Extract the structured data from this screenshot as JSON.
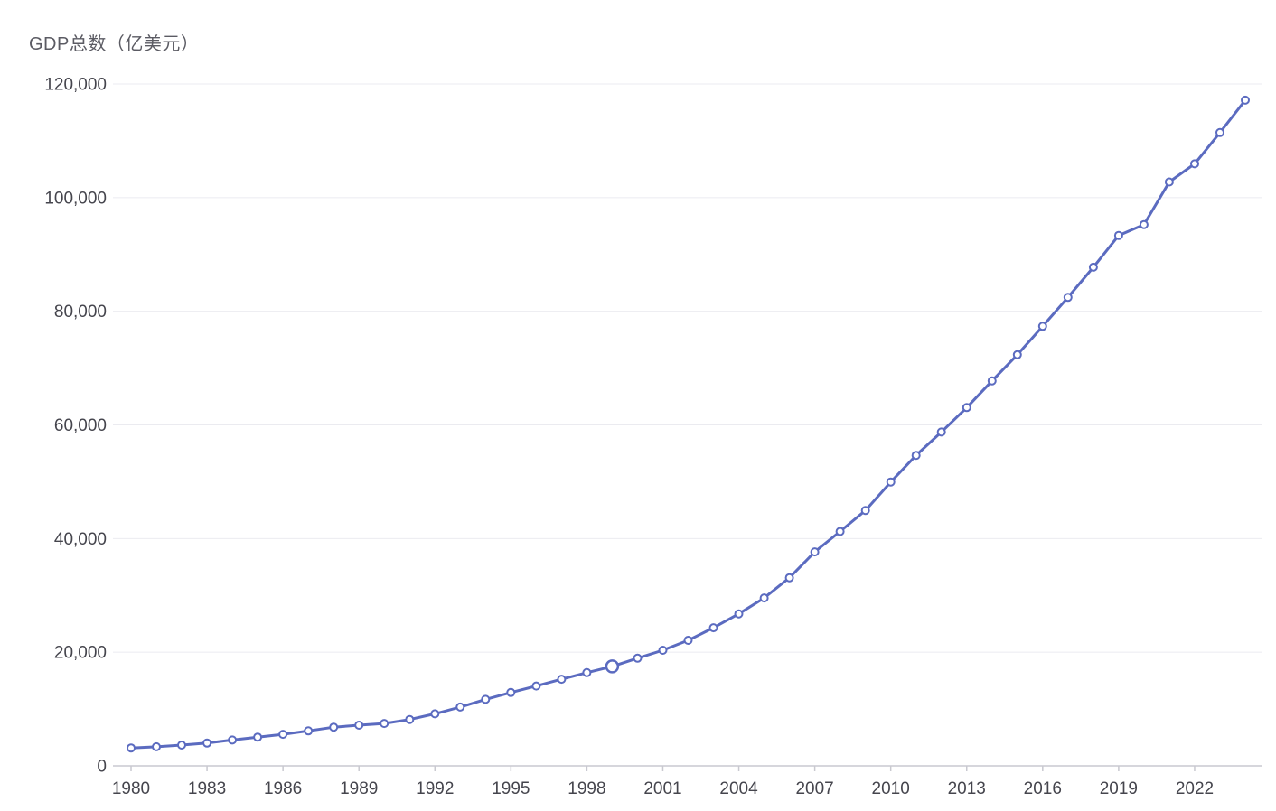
{
  "chart": {
    "title": "GDP总数（亿美元）"
  },
  "chart_data": {
    "type": "line",
    "title": "GDP总数（亿美元）",
    "series_name": "GDP总数",
    "x": [
      1980,
      1981,
      1982,
      1983,
      1984,
      1985,
      1986,
      1987,
      1988,
      1989,
      1990,
      1991,
      1992,
      1993,
      1994,
      1995,
      1996,
      1997,
      1998,
      1999,
      2000,
      2001,
      2002,
      2003,
      2004,
      2005,
      2006,
      2007,
      2008,
      2009,
      2010,
      2011,
      2012,
      2013,
      2014,
      2015,
      2016,
      2017,
      2018,
      2019,
      2020,
      2021,
      2022,
      2023,
      2024
    ],
    "values": [
      3150,
      3350,
      3650,
      4000,
      4550,
      5050,
      5550,
      6150,
      6800,
      7150,
      7450,
      8150,
      9150,
      10350,
      11700,
      12900,
      14050,
      15250,
      16400,
      17500,
      18950,
      20350,
      22100,
      24300,
      26750,
      29550,
      33100,
      37650,
      41250,
      44950,
      49950,
      54650,
      58750,
      63050,
      67750,
      72350,
      77350,
      82450,
      87750,
      93350,
      95250,
      102750,
      105950,
      111450,
      117150
    ],
    "ylim": [
      0,
      120000
    ],
    "ytick_interval": 20000,
    "ytick_labels": [
      "0",
      "20,000",
      "40,000",
      "60,000",
      "80,000",
      "100,000",
      "120,000"
    ],
    "xtick_labels": [
      "1980",
      "1983",
      "1986",
      "1989",
      "1992",
      "1995",
      "1998",
      "2001",
      "2004",
      "2007",
      "2010",
      "2013",
      "2016",
      "2019",
      "2022"
    ],
    "xtick_every": 3,
    "emphasis_x": 1999,
    "xlabel": "",
    "ylabel": "",
    "legend": "none",
    "grid": "horizontal",
    "colors": {
      "line": "#5b6bc0",
      "marker_fill": "#ffffff",
      "grid_line": "#ebebf0",
      "axis_line": "#c9c9d0",
      "tick_label": "#45454d",
      "title": "#5b5b63"
    }
  }
}
